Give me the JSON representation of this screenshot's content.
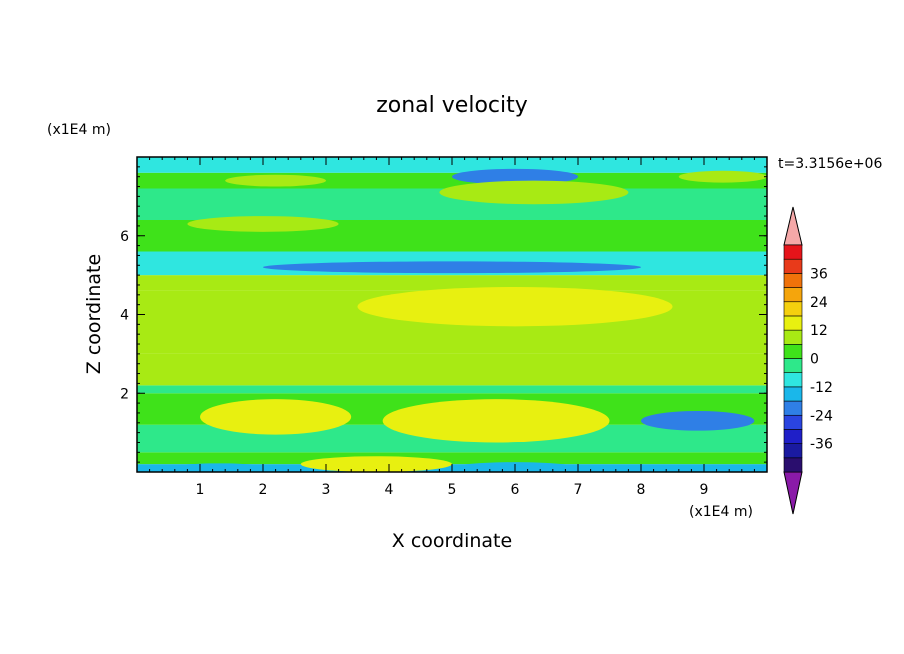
{
  "chart_data": {
    "type": "heatmap",
    "title": "zonal velocity",
    "xlabel": "X coordinate",
    "ylabel": "Z coordinate",
    "x_unit_label": "(x1E4 m)",
    "y_unit_label": "(x1E4 m)",
    "time_label": "t=3.3156e+06",
    "xlim": [
      0,
      10
    ],
    "ylim": [
      0,
      8
    ],
    "x_ticks": [
      "1",
      "2",
      "3",
      "4",
      "5",
      "6",
      "7",
      "8",
      "9"
    ],
    "y_ticks": [
      "2",
      "4",
      "6"
    ],
    "colorbar": {
      "levels": [
        -42,
        -36,
        -30,
        -24,
        -18,
        -12,
        -6,
        0,
        6,
        12,
        18,
        24,
        30,
        36,
        42
      ],
      "tick_labels": [
        "36",
        "24",
        "12",
        "0",
        "-12",
        "-24",
        "-36"
      ],
      "colors": [
        "#2a0e6e",
        "#1a1aa0",
        "#1f1fc8",
        "#2a44e0",
        "#2f7fe6",
        "#1ab7ea",
        "#2fe6e0",
        "#2ee88a",
        "#3fe21a",
        "#a8ea14",
        "#e8f010",
        "#f5d00e",
        "#f5a50c",
        "#f0720a",
        "#e83a1a",
        "#e6141a"
      ],
      "over_color": "#f5a8a8",
      "under_color": "#8a1aa8"
    },
    "bands": [
      {
        "z": [
          0.0,
          0.2
        ],
        "value": -14
      },
      {
        "z": [
          0.2,
          0.5
        ],
        "value": 2
      },
      {
        "z": [
          0.5,
          1.2
        ],
        "value": -6
      },
      {
        "z": [
          1.2,
          2.0
        ],
        "value": 5
      },
      {
        "z": [
          2.0,
          2.2
        ],
        "value": -4
      },
      {
        "z": [
          2.2,
          3.0
        ],
        "value": 8
      },
      {
        "z": [
          3.0,
          4.6
        ],
        "value": 11
      },
      {
        "z": [
          4.6,
          5.0
        ],
        "value": 7
      },
      {
        "z": [
          5.0,
          5.6
        ],
        "value": -10
      },
      {
        "z": [
          5.6,
          6.4
        ],
        "value": 3
      },
      {
        "z": [
          6.4,
          7.2
        ],
        "value": -2
      },
      {
        "z": [
          7.2,
          7.6
        ],
        "value": 5
      },
      {
        "z": [
          7.6,
          8.0
        ],
        "value": -8
      }
    ],
    "features": [
      {
        "x": 2.2,
        "z": 1.4,
        "rx": 1.2,
        "rz": 0.45,
        "value": 12
      },
      {
        "x": 5.7,
        "z": 1.3,
        "rx": 1.8,
        "rz": 0.55,
        "value": 12
      },
      {
        "x": 8.9,
        "z": 1.3,
        "rx": 0.9,
        "rz": 0.25,
        "value": -20
      },
      {
        "x": 6.0,
        "z": 0.1,
        "rx": 1.0,
        "rz": 0.15,
        "value": -18
      },
      {
        "x": 1.3,
        "z": 0.1,
        "rx": 0.8,
        "rz": 0.12,
        "value": -18
      },
      {
        "x": 3.8,
        "z": 0.2,
        "rx": 1.2,
        "rz": 0.2,
        "value": 12
      },
      {
        "x": 6.0,
        "z": 7.5,
        "rx": 1.0,
        "rz": 0.2,
        "value": -24
      },
      {
        "x": 6.3,
        "z": 7.1,
        "rx": 1.5,
        "rz": 0.3,
        "value": 10
      },
      {
        "x": 2.2,
        "z": 7.4,
        "rx": 0.8,
        "rz": 0.15,
        "value": 10
      },
      {
        "x": 9.3,
        "z": 7.5,
        "rx": 0.7,
        "rz": 0.15,
        "value": 10
      },
      {
        "x": 5.0,
        "z": 5.2,
        "rx": 3.0,
        "rz": 0.15,
        "value": -20
      },
      {
        "x": 6.0,
        "z": 4.2,
        "rx": 2.5,
        "rz": 0.5,
        "value": 16
      },
      {
        "x": 2.0,
        "z": 6.3,
        "rx": 1.2,
        "rz": 0.2,
        "value": 10
      }
    ]
  }
}
